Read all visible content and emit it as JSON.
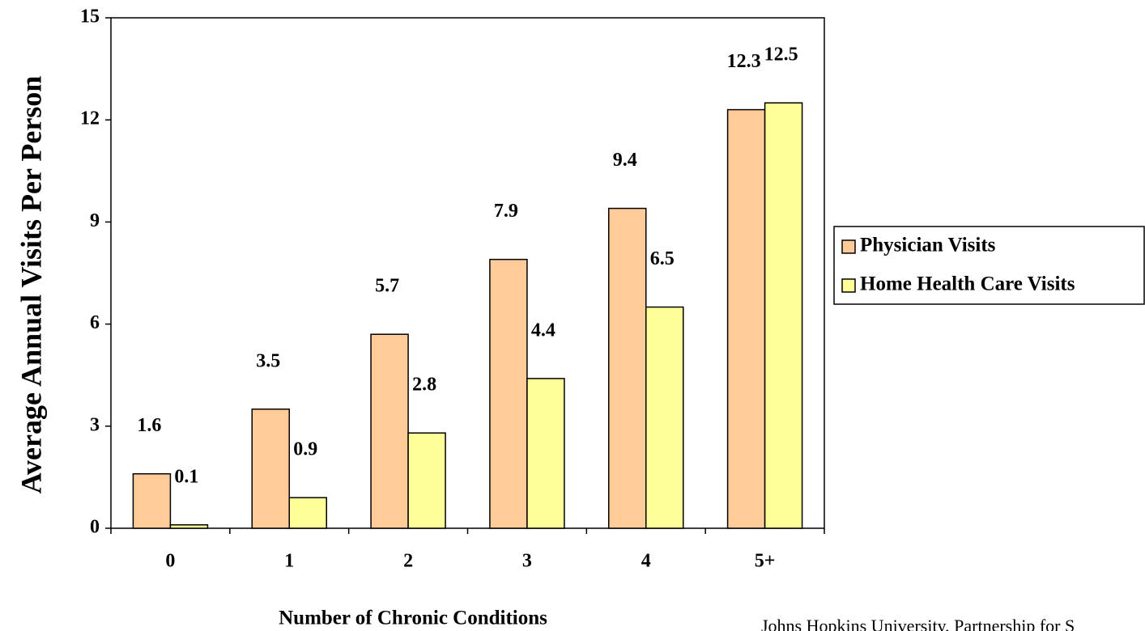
{
  "chart_data": {
    "type": "bar",
    "y_label": "Average Annual Visits Per Person",
    "x_label": "Number of Chronic Conditions",
    "source": "Johns Hopkins University, Partnership for S",
    "categories": [
      "0",
      "1",
      "2",
      "3",
      "4",
      "5+"
    ],
    "series": [
      {
        "name": "Physician Visits",
        "color": "#ffcc99",
        "values": [
          1.6,
          3.5,
          5.7,
          7.9,
          9.4,
          12.3
        ]
      },
      {
        "name": "Home Health Care Visits",
        "color": "#ffff99",
        "values": [
          0.1,
          0.9,
          2.8,
          4.4,
          6.5,
          12.5
        ]
      }
    ],
    "ylim": [
      0,
      15
    ],
    "yticks": [
      0,
      3,
      6,
      9,
      12,
      15
    ],
    "legend": "right",
    "grid": false
  }
}
